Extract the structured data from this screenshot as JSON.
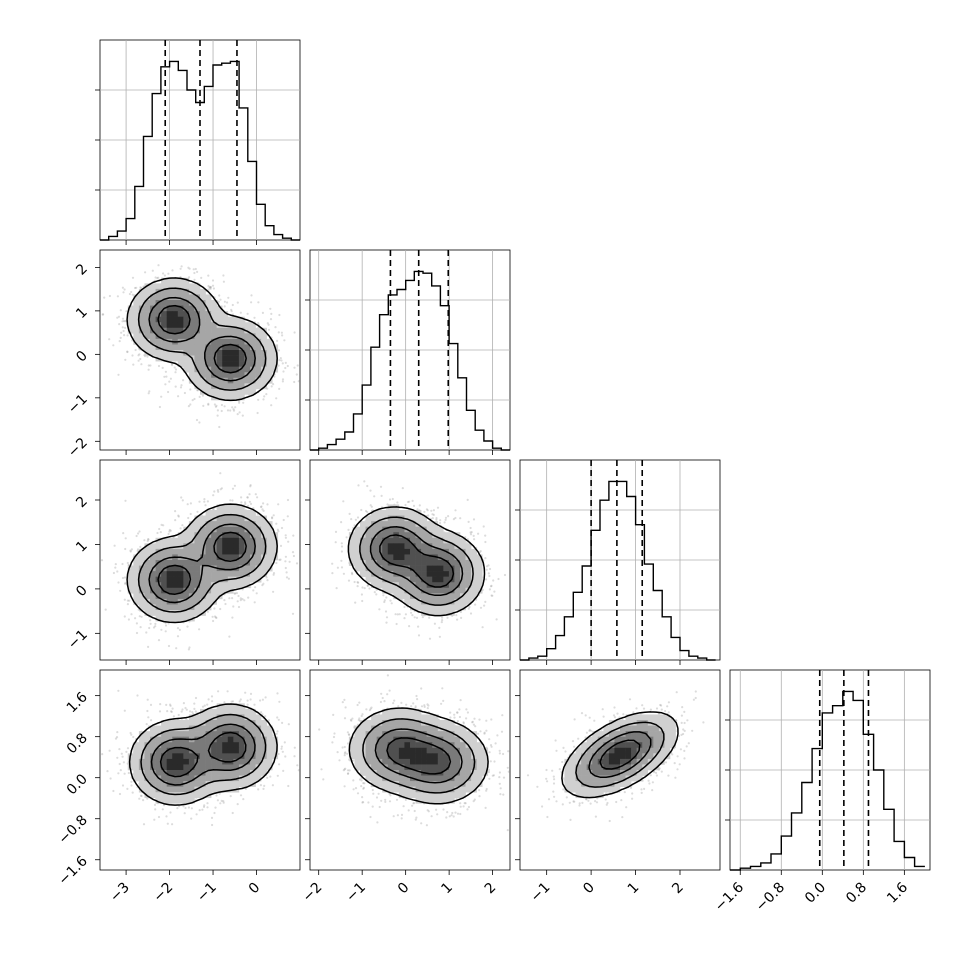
{
  "chart_data": {
    "type": "corner",
    "grid": true,
    "colors": {
      "line": "#000000",
      "grid": "#b0b0b0",
      "points": "#9a9a9a"
    },
    "params": [
      {
        "range": [
          -3.6,
          1.0
        ],
        "ticks": [
          -3,
          -2,
          -1,
          0
        ],
        "tick_labels": [
          "−3",
          "−2",
          "−1",
          "0"
        ],
        "quantiles": [
          -2.1,
          -1.3,
          -0.45
        ]
      },
      {
        "range": [
          -2.2,
          2.4
        ],
        "ticks": [
          -2,
          -1,
          0,
          1,
          2
        ],
        "tick_labels": [
          "−2",
          "−1",
          "0",
          "1",
          "2"
        ],
        "quantiles": [
          -0.35,
          0.3,
          0.98
        ]
      },
      {
        "range": [
          -1.6,
          2.9
        ],
        "ticks": [
          -1,
          0,
          1,
          2
        ],
        "tick_labels": [
          "−1",
          "0",
          "1",
          "2"
        ],
        "quantiles": [
          0.0,
          0.58,
          1.15
        ]
      },
      {
        "range": [
          -1.8,
          2.1
        ],
        "ticks": [
          -1.6,
          -0.8,
          0.0,
          0.8,
          1.6
        ],
        "tick_labels": [
          "−1.6",
          "−0.8",
          "0.0",
          "0.8",
          "1.6"
        ],
        "quantiles": [
          -0.05,
          0.42,
          0.9
        ]
      }
    ],
    "diagonal_histograms": [
      {
        "bins": [
          -3.6,
          -3.4,
          -3.2,
          -3.0,
          -2.8,
          -2.6,
          -2.4,
          -2.2,
          -2.0,
          -1.8,
          -1.6,
          -1.4,
          -1.2,
          -1.0,
          -0.8,
          -0.6,
          -0.4,
          -0.2,
          0.0,
          0.2,
          0.4,
          0.6,
          0.8,
          1.0
        ],
        "counts": [
          0,
          2,
          5,
          12,
          30,
          58,
          82,
          97,
          100,
          95,
          84,
          77,
          86,
          98,
          99,
          100,
          74,
          44,
          20,
          8,
          3,
          1,
          0
        ]
      },
      {
        "bins": [
          -2.2,
          -2.0,
          -1.8,
          -1.6,
          -1.4,
          -1.2,
          -1.0,
          -0.8,
          -0.6,
          -0.4,
          -0.2,
          0.0,
          0.2,
          0.4,
          0.6,
          0.8,
          1.0,
          1.2,
          1.4,
          1.6,
          1.8,
          2.0,
          2.2,
          2.4
        ],
        "counts": [
          0,
          1,
          3,
          6,
          10,
          20,
          36,
          57,
          75,
          86,
          89,
          94,
          99,
          98,
          91,
          80,
          59,
          40,
          22,
          11,
          5,
          1,
          0
        ]
      },
      {
        "bins": [
          -1.6,
          -1.4,
          -1.2,
          -1.0,
          -0.8,
          -0.6,
          -0.4,
          -0.2,
          0.0,
          0.2,
          0.4,
          0.6,
          0.8,
          1.0,
          1.2,
          1.4,
          1.6,
          1.8,
          2.0,
          2.2,
          2.4,
          2.6,
          2.8
        ],
        "counts": [
          0,
          1,
          2,
          6,
          13,
          23,
          36,
          50,
          69,
          85,
          95,
          95,
          87,
          72,
          51,
          37,
          23,
          12,
          5,
          2,
          1,
          0
        ]
      },
      {
        "bins": [
          -1.8,
          -1.6,
          -1.4,
          -1.2,
          -1.0,
          -0.8,
          -0.6,
          -0.4,
          -0.2,
          0.0,
          0.2,
          0.4,
          0.6,
          0.8,
          1.0,
          1.2,
          1.4,
          1.6,
          1.8,
          2.0
        ],
        "counts": [
          0,
          1,
          2,
          4,
          9,
          19,
          32,
          49,
          68,
          88,
          92,
          100,
          95,
          76,
          56,
          34,
          16,
          7,
          2
        ]
      }
    ],
    "pair_panels": [
      {
        "x": 0,
        "y": 1,
        "modes": [
          {
            "cx": -1.9,
            "cy": 0.8,
            "sx": 0.45,
            "sy": 0.4
          },
          {
            "cx": -0.6,
            "cy": -0.1,
            "sx": 0.45,
            "sy": 0.4
          }
        ]
      },
      {
        "x": 0,
        "y": 2,
        "modes": [
          {
            "cx": -1.9,
            "cy": 0.2,
            "sx": 0.45,
            "sy": 0.4
          },
          {
            "cx": -0.6,
            "cy": 0.95,
            "sx": 0.45,
            "sy": 0.4
          }
        ]
      },
      {
        "x": 1,
        "y": 2,
        "modes": [
          {
            "cx": -0.25,
            "cy": 0.9,
            "sx": 0.45,
            "sy": 0.4
          },
          {
            "cx": 0.75,
            "cy": 0.35,
            "sx": 0.45,
            "sy": 0.4
          }
        ]
      },
      {
        "x": 0,
        "y": 3,
        "modes": [
          {
            "cx": -1.85,
            "cy": 0.3,
            "sx": 0.45,
            "sy": 0.35
          },
          {
            "cx": -0.6,
            "cy": 0.6,
            "sx": 0.45,
            "sy": 0.35
          }
        ]
      },
      {
        "x": 1,
        "y": 3,
        "modes": [
          {
            "cx": -0.15,
            "cy": 0.55,
            "sx": 0.5,
            "sy": 0.35
          },
          {
            "cx": 0.75,
            "cy": 0.3,
            "sx": 0.5,
            "sy": 0.35
          }
        ]
      },
      {
        "x": 2,
        "y": 3,
        "modes": [
          {
            "cx": 0.65,
            "cy": 0.45,
            "sx": 0.55,
            "sy": 0.35,
            "rho": 0.55
          }
        ]
      }
    ]
  }
}
